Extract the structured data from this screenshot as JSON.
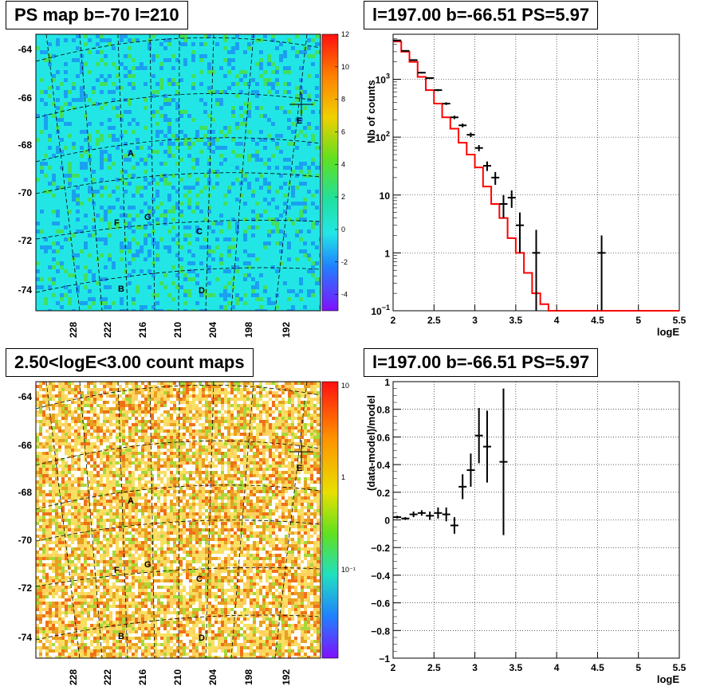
{
  "panels": {
    "ps_map": {
      "title": "PS map b=-70 l=210",
      "y_ticks": [
        "-64",
        "-66",
        "-68",
        "-70",
        "-72",
        "-74"
      ],
      "x_ticks": [
        "228",
        "222",
        "216",
        "210",
        "204",
        "198",
        "192"
      ],
      "colorbar_ticks": [
        "12",
        "10",
        "8",
        "6",
        "4",
        "2",
        "0",
        "-2",
        "-4"
      ],
      "sources": [
        {
          "label": "A"
        },
        {
          "label": "B"
        },
        {
          "label": "C"
        },
        {
          "label": "D"
        },
        {
          "label": "E"
        },
        {
          "label": "F"
        },
        {
          "label": "G"
        }
      ],
      "colors": {
        "background": "#22e6e6",
        "patch_low": "#1aa0f0",
        "patch_high": "#40e060"
      }
    },
    "count_map": {
      "title": "2.50<logE<3.00 count maps",
      "y_ticks": [
        "-64",
        "-66",
        "-68",
        "-70",
        "-72",
        "-74"
      ],
      "x_ticks": [
        "228",
        "222",
        "216",
        "210",
        "204",
        "198",
        "192"
      ],
      "colorbar_ticks": [
        "10",
        "1",
        "10⁻¹"
      ],
      "sources": [
        {
          "label": "A"
        },
        {
          "label": "B"
        },
        {
          "label": "C"
        },
        {
          "label": "D"
        },
        {
          "label": "E"
        },
        {
          "label": "F"
        },
        {
          "label": "G"
        }
      ],
      "colors": {
        "base": "#f0c020"
      }
    }
  },
  "chart_data": [
    {
      "type": "line",
      "title": "l=197.00 b=-66.51 PS=5.97",
      "xlabel": "logE",
      "ylabel": "Nb of counts",
      "xlim": [
        2,
        5.5
      ],
      "ylim": [
        0.1,
        6000
      ],
      "yscale": "log",
      "grid": true,
      "x_ticks": [
        "2",
        "2.5",
        "3",
        "3.5",
        "4",
        "4.5",
        "5",
        "5.5"
      ],
      "y_ticks": [
        {
          "v": 1000,
          "base": "10",
          "exp": "3"
        },
        {
          "v": 100,
          "base": "10",
          "exp": "2"
        },
        {
          "v": 10,
          "base": "10",
          "exp": ""
        },
        {
          "v": 1,
          "base": "1",
          "exp": ""
        },
        {
          "v": 0.1,
          "base": "10",
          "exp": "−1"
        }
      ],
      "series": [
        {
          "kind": "step",
          "color": "#ff0000",
          "bin_edges": [
            2.0,
            2.1,
            2.2,
            2.3,
            2.4,
            2.5,
            2.6,
            2.7,
            2.8,
            2.9,
            3.0,
            3.1,
            3.2,
            3.3,
            3.4,
            3.5,
            3.6,
            3.7,
            3.8,
            3.9,
            4.0,
            4.1,
            4.2,
            4.3,
            4.4,
            4.5,
            4.6,
            4.7,
            4.8,
            4.9,
            5.0,
            5.1,
            5.2,
            5.3,
            5.4,
            5.5
          ],
          "values": [
            4500,
            3000,
            2000,
            1100,
            650,
            380,
            220,
            140,
            80,
            50,
            30,
            14,
            7,
            4,
            1.8,
            1.0,
            0.45,
            0.2,
            0.13,
            0.1,
            0.1,
            0.1,
            0.1,
            0.1,
            0.1,
            0.1,
            0.1,
            0.1,
            0.1,
            0.1,
            0.1,
            0.1,
            0.1,
            0.1,
            0.1
          ]
        },
        {
          "kind": "errorbar",
          "color": "#000000",
          "x": [
            2.05,
            2.15,
            2.25,
            2.35,
            2.45,
            2.55,
            2.65,
            2.75,
            2.85,
            2.95,
            3.05,
            3.15,
            3.25,
            3.35,
            3.45,
            3.55,
            3.75,
            4.55
          ],
          "y": [
            4700,
            3100,
            2150,
            1300,
            1050,
            650,
            380,
            220,
            160,
            110,
            65,
            32,
            20,
            7,
            9,
            3,
            1,
            1
          ],
          "yerr_lo": [
            70,
            60,
            50,
            40,
            35,
            25,
            20,
            15,
            12,
            10,
            8,
            6,
            5,
            3,
            3,
            2,
            1,
            1
          ],
          "yerr_hi": [
            70,
            60,
            50,
            40,
            35,
            25,
            20,
            15,
            12,
            10,
            8,
            6,
            5,
            3,
            3,
            2,
            1.5,
            1
          ]
        }
      ]
    },
    {
      "type": "scatter",
      "title": "l=197.00 b=-66.51 PS=5.97",
      "xlabel": "logE",
      "ylabel": "(data-model)/model",
      "xlim": [
        2,
        5.5
      ],
      "ylim": [
        -1,
        1
      ],
      "grid": true,
      "x_ticks": [
        "2",
        "2.5",
        "3",
        "3.5",
        "4",
        "4.5",
        "5",
        "5.5"
      ],
      "y_ticks": [
        "1",
        "0.8",
        "0.6",
        "0.4",
        "0.2",
        "0",
        "−0.2",
        "−0.4",
        "−0.6",
        "−0.8",
        "−1"
      ],
      "series": [
        {
          "kind": "errorbar",
          "color": "#000000",
          "x": [
            2.05,
            2.15,
            2.25,
            2.35,
            2.45,
            2.55,
            2.65,
            2.75,
            2.85,
            2.95,
            3.05,
            3.15,
            3.35
          ],
          "y": [
            0.02,
            0.01,
            0.04,
            0.05,
            0.03,
            0.05,
            0.04,
            -0.04,
            0.24,
            0.36,
            0.61,
            0.53,
            0.42
          ],
          "yerr": [
            0.01,
            0.01,
            0.02,
            0.02,
            0.03,
            0.04,
            0.05,
            0.06,
            0.09,
            0.12,
            0.2,
            0.26,
            0.53
          ]
        }
      ]
    }
  ]
}
